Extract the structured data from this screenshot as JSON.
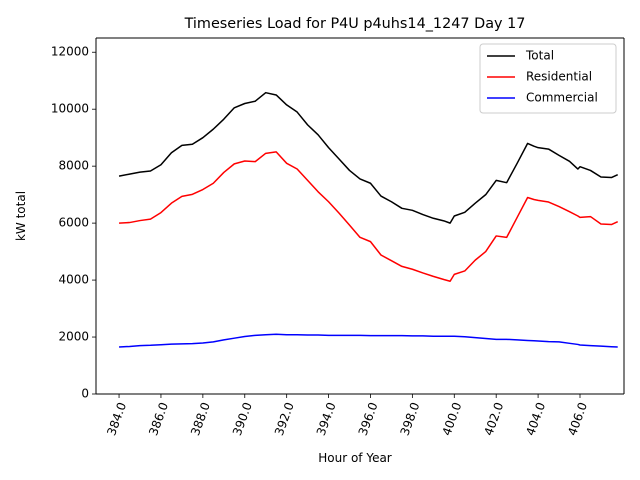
{
  "chart_data": {
    "type": "line",
    "title": "Timeseries Load for P4U p4uhs14_1247  Day 17",
    "xlabel": "Hour of Year",
    "ylabel": "kW total",
    "xlim": [
      382.9,
      408.1
    ],
    "ylim": [
      0,
      12500
    ],
    "xticks": [
      384,
      386,
      388,
      390,
      392,
      394,
      396,
      398,
      400,
      402,
      404,
      406
    ],
    "xtick_labels": [
      "384.0",
      "386.0",
      "388.0",
      "390.0",
      "392.0",
      "394.0",
      "396.0",
      "398.0",
      "400.0",
      "402.0",
      "404.0",
      "406.0"
    ],
    "yticks": [
      0,
      2000,
      4000,
      6000,
      8000,
      10000,
      12000
    ],
    "ytick_labels": [
      "0",
      "2000",
      "4000",
      "6000",
      "8000",
      "10000",
      "12000"
    ],
    "x": [
      384.0,
      384.5,
      385.0,
      385.5,
      386.0,
      386.5,
      387.0,
      387.5,
      388.0,
      388.5,
      389.0,
      389.5,
      390.0,
      390.5,
      391.0,
      391.5,
      392.0,
      392.5,
      393.0,
      393.5,
      394.0,
      394.5,
      395.0,
      395.5,
      396.0,
      396.5,
      397.0,
      397.5,
      398.0,
      398.5,
      399.0,
      399.5,
      399.8,
      400.0,
      400.5,
      401.0,
      401.5,
      402.0,
      402.5,
      403.0,
      403.5,
      403.8,
      404.0,
      404.5,
      405.0,
      405.5,
      405.9,
      406.0,
      406.5,
      407.0,
      407.5,
      407.8
    ],
    "legend": {
      "location": "upper right"
    },
    "series": [
      {
        "name": "Total",
        "color": "#000000",
        "values": [
          7650,
          7720,
          7790,
          7830,
          8050,
          8470,
          8730,
          8770,
          9000,
          9300,
          9650,
          10050,
          10200,
          10280,
          10580,
          10500,
          10150,
          9900,
          9450,
          9100,
          8650,
          8250,
          7850,
          7550,
          7400,
          6950,
          6750,
          6520,
          6450,
          6300,
          6170,
          6080,
          6000,
          6250,
          6380,
          6700,
          7000,
          7500,
          7420,
          8100,
          8800,
          8700,
          8650,
          8600,
          8380,
          8170,
          7900,
          7980,
          7850,
          7620,
          7600,
          7700
        ]
      },
      {
        "name": "Residential",
        "color": "#ff0000",
        "values": [
          6000,
          6020,
          6090,
          6140,
          6370,
          6700,
          6940,
          7010,
          7180,
          7400,
          7780,
          8080,
          8180,
          8160,
          8450,
          8500,
          8100,
          7900,
          7500,
          7100,
          6750,
          6350,
          5930,
          5500,
          5350,
          4880,
          4680,
          4480,
          4380,
          4250,
          4130,
          4020,
          3960,
          4200,
          4320,
          4700,
          5000,
          5550,
          5500,
          6200,
          6900,
          6830,
          6800,
          6740,
          6580,
          6400,
          6250,
          6200,
          6230,
          5970,
          5950,
          6050
        ]
      },
      {
        "name": "Commercial",
        "color": "#0000ff",
        "values": [
          1650,
          1670,
          1700,
          1710,
          1730,
          1750,
          1760,
          1770,
          1790,
          1830,
          1900,
          1960,
          2020,
          2060,
          2080,
          2100,
          2080,
          2080,
          2070,
          2070,
          2060,
          2060,
          2060,
          2060,
          2050,
          2050,
          2050,
          2050,
          2040,
          2040,
          2030,
          2030,
          2030,
          2030,
          2010,
          1980,
          1950,
          1920,
          1920,
          1900,
          1880,
          1870,
          1860,
          1840,
          1830,
          1780,
          1740,
          1720,
          1700,
          1680,
          1660,
          1650
        ]
      }
    ]
  }
}
